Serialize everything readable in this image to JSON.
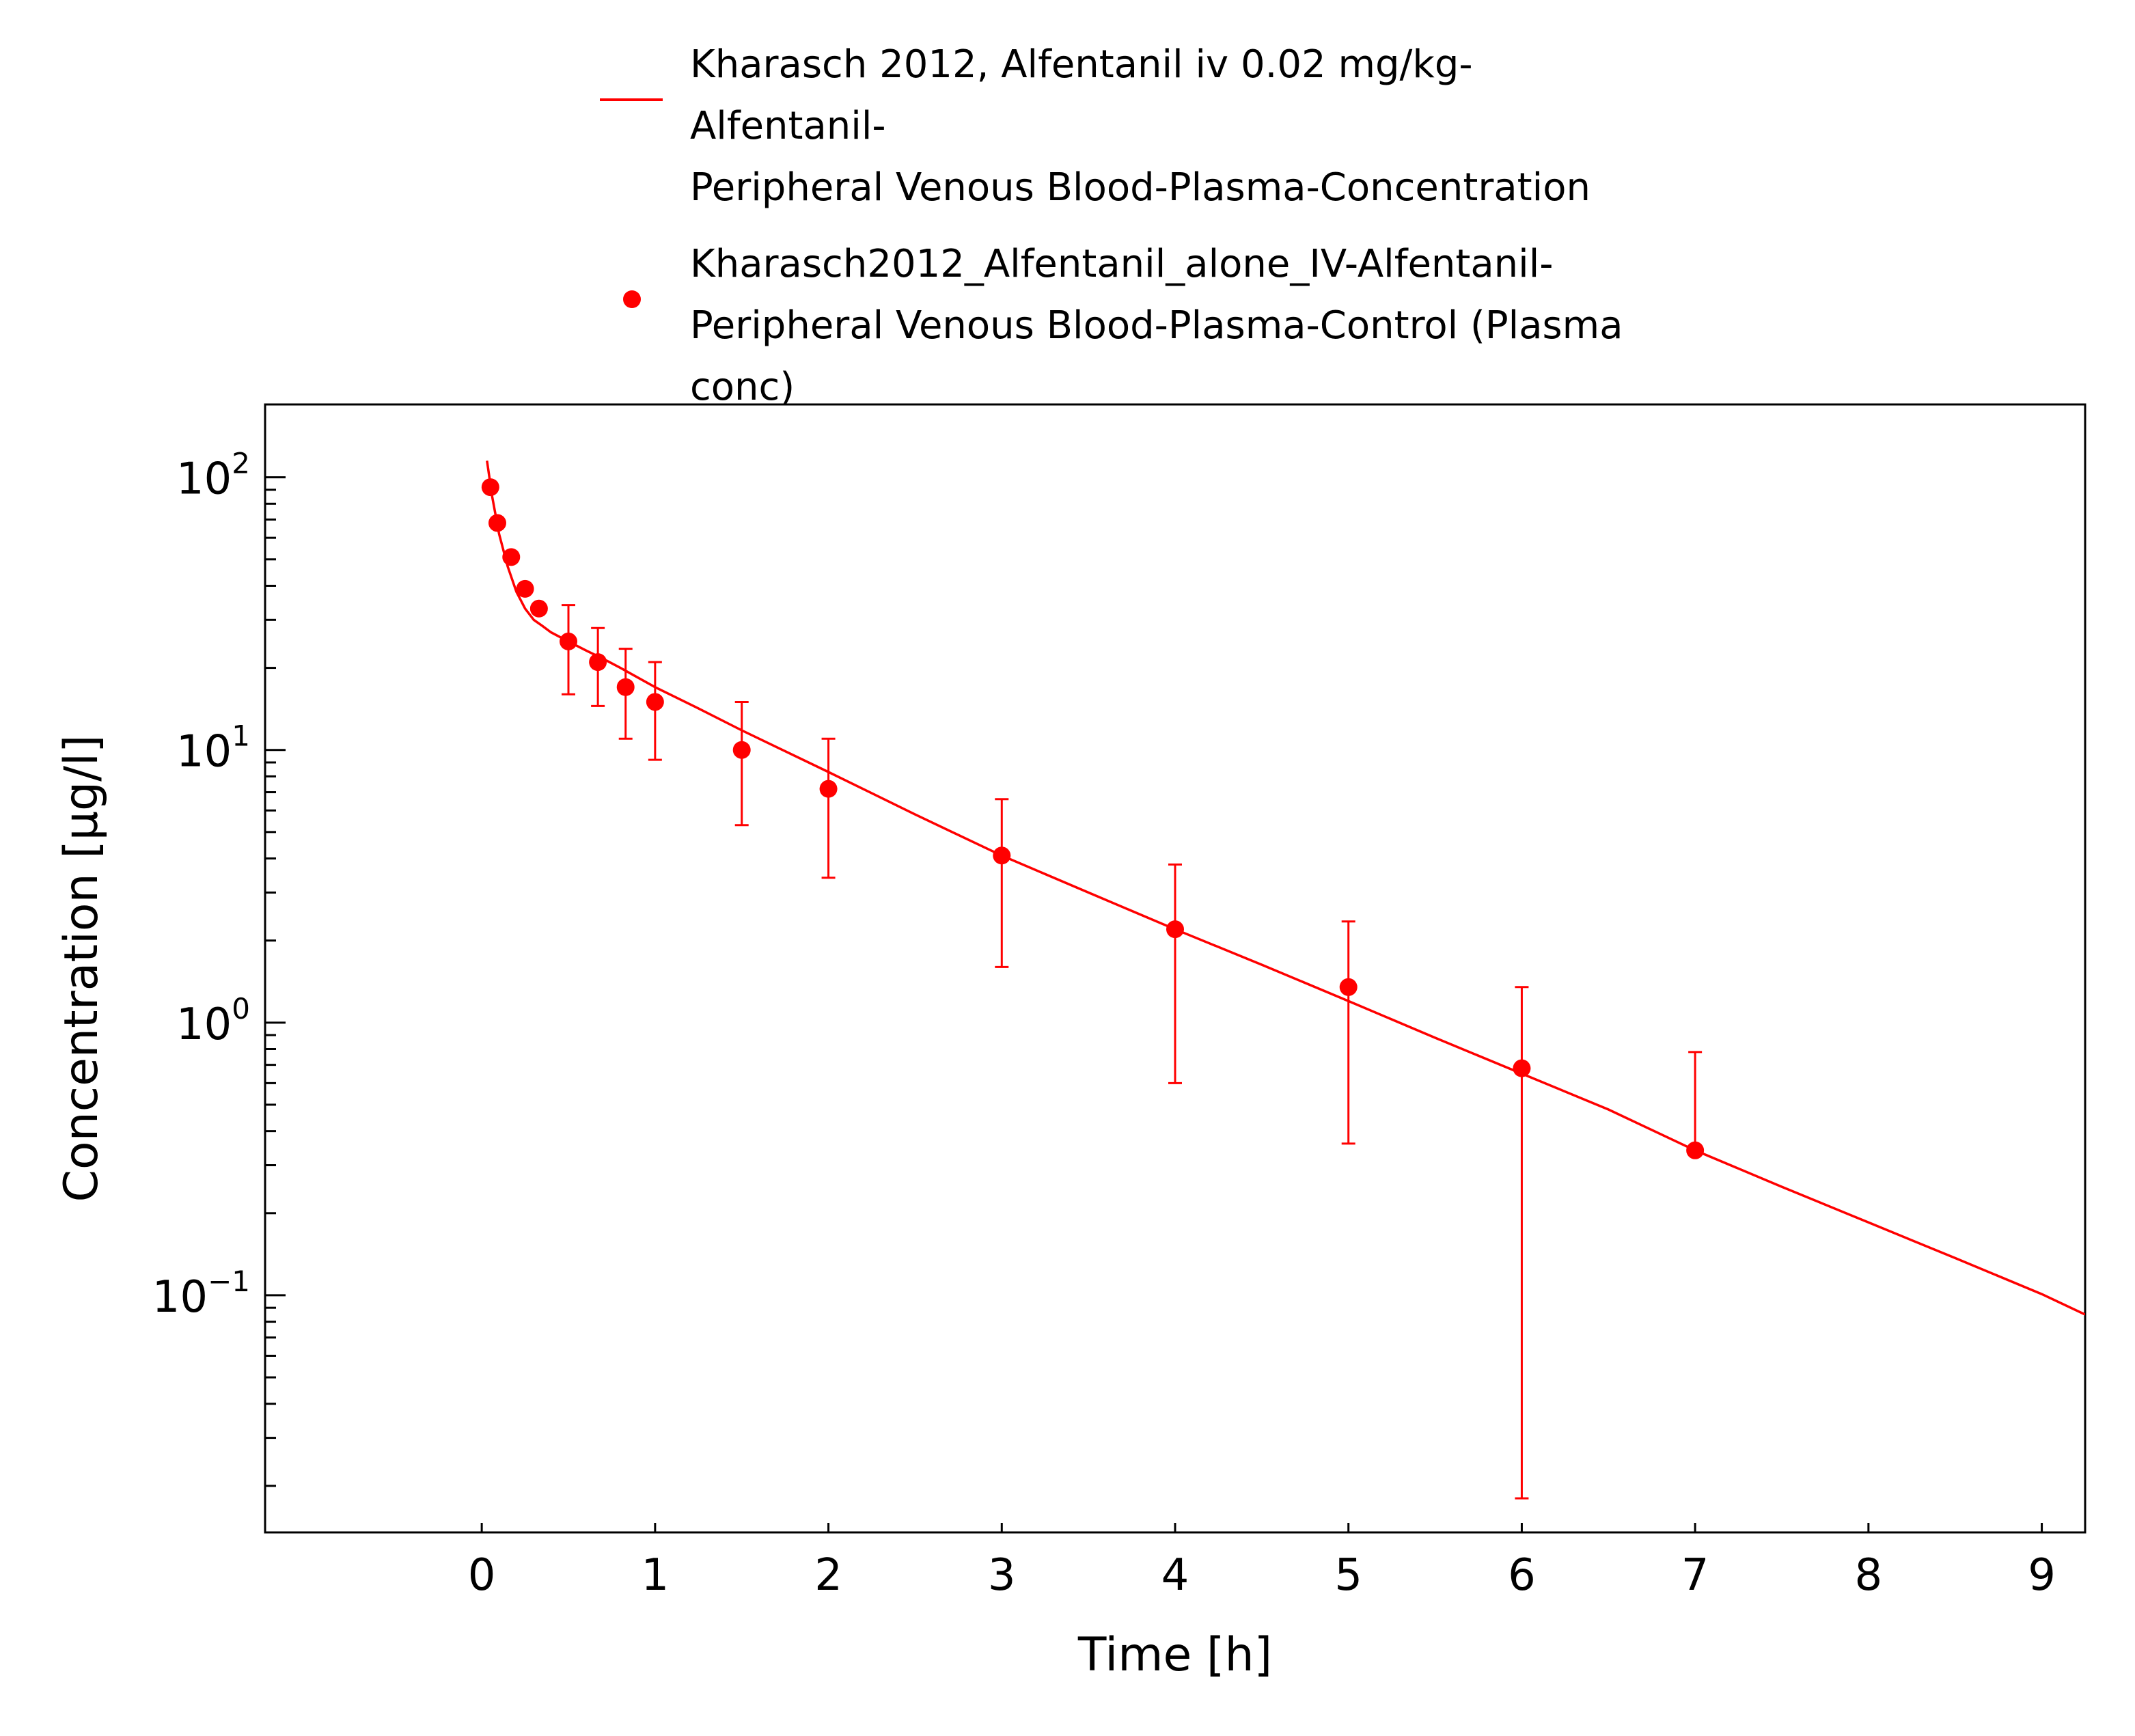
{
  "legend": {
    "entries": [
      {
        "text": "Kharasch 2012, Alfentanil iv 0.02 mg/kg-\nAlfentanil-\nPeripheral Venous Blood-Plasma-Concentration",
        "marker": "line"
      },
      {
        "text": "Kharasch2012_Alfentanil_alone_IV-Alfentanil-\nPeripheral Venous Blood-Plasma-Control (Plasma\nconc)",
        "marker": "dot"
      }
    ]
  },
  "chart_data": {
    "type": "scatter",
    "xlabel": "Time [h]",
    "ylabel": "Concentration [µg/l]",
    "xlim": [
      -1.25,
      9.25
    ],
    "ylim": [
      0.0135,
      185
    ],
    "yscale": "log",
    "grid": false,
    "legend_position": "top",
    "color": "#ff0000",
    "xticks": [
      0,
      1,
      2,
      3,
      4,
      5,
      6,
      7,
      8,
      9
    ],
    "xtick_labels": [
      "0",
      "1",
      "2",
      "3",
      "4",
      "5",
      "6",
      "7",
      "8",
      "9"
    ],
    "yticks": [
      {
        "value": 100,
        "base": "10",
        "exp": "2"
      },
      {
        "value": 10,
        "base": "10",
        "exp": "1"
      },
      {
        "value": 1,
        "base": "10",
        "exp": "0"
      },
      {
        "value": 0.1,
        "base": "10",
        "exp": "−1"
      }
    ],
    "series": [
      {
        "name": "Kharasch 2012, Alfentanil iv 0.02 mg/kg-Alfentanil-Peripheral Venous Blood-Plasma-Concentration",
        "kind": "line",
        "x": [
          0.03,
          0.06,
          0.1,
          0.15,
          0.2,
          0.25,
          0.3,
          0.35,
          0.4,
          0.5,
          0.6,
          0.7,
          0.8,
          1.0,
          1.25,
          1.5,
          2.0,
          2.5,
          3.0,
          3.5,
          4.0,
          4.5,
          5.0,
          5.5,
          6.0,
          6.5,
          7.0,
          7.5,
          8.0,
          8.5,
          9.0,
          9.25
        ],
        "y": [
          115,
          85,
          62,
          47,
          38,
          33,
          30,
          28.5,
          27,
          25,
          23.2,
          21.6,
          20,
          17,
          14.2,
          11.8,
          8.3,
          5.8,
          4.1,
          3.0,
          2.2,
          1.63,
          1.2,
          0.88,
          0.65,
          0.48,
          0.34,
          0.25,
          0.185,
          0.137,
          0.101,
          0.085
        ]
      },
      {
        "name": "Kharasch2012_Alfentanil_alone_IV-Alfentanil-Peripheral Venous Blood-Plasma-Control (Plasma conc)",
        "kind": "scatter",
        "x": [
          0.05,
          0.09,
          0.17,
          0.25,
          0.33,
          0.5,
          0.67,
          0.83,
          1.0,
          1.5,
          2.0,
          3.0,
          4.0,
          5.0,
          6.0,
          7.0
        ],
        "y": [
          92,
          68,
          51,
          39,
          33,
          25,
          21,
          17,
          15,
          10,
          7.2,
          4.1,
          2.2,
          1.35,
          0.68,
          0.34
        ],
        "y_lower": [
          null,
          null,
          null,
          null,
          null,
          16,
          14.5,
          11,
          9.2,
          5.3,
          3.4,
          1.6,
          0.6,
          0.36,
          0.018,
          null
        ],
        "y_upper": [
          null,
          null,
          null,
          null,
          null,
          34,
          28,
          23.5,
          21,
          15,
          11,
          6.6,
          3.8,
          2.35,
          1.35,
          0.78
        ]
      }
    ]
  }
}
